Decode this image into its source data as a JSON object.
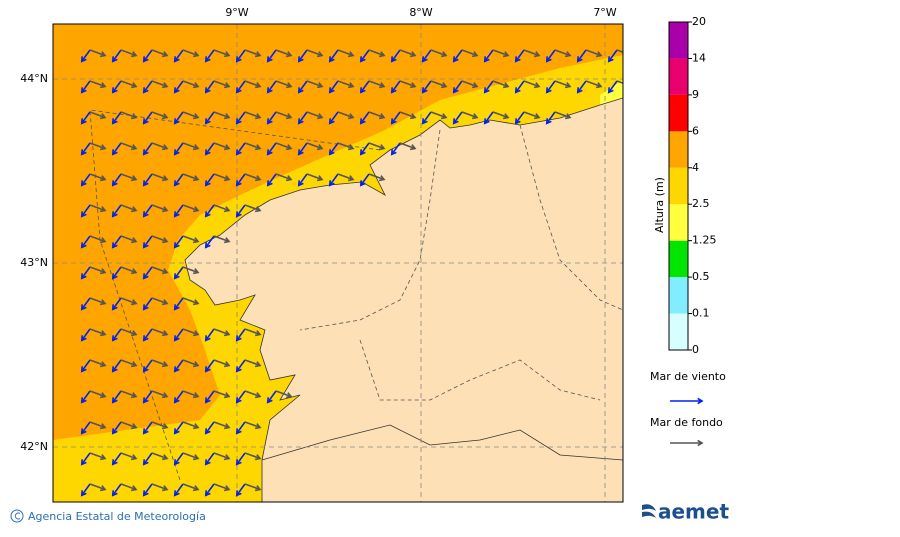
{
  "map": {
    "lon_labels": [
      "9°W",
      "8°W",
      "7°W"
    ],
    "lat_labels": [
      "44°N",
      "43°N",
      "42°N"
    ]
  },
  "colorbar": {
    "title": "Altura (m)",
    "levels": [
      0,
      0.1,
      0.5,
      1.25,
      2.5,
      4,
      6,
      9,
      14,
      20
    ],
    "colors": [
      "#d8ffff",
      "#80eeff",
      "#00e600",
      "#ffff40",
      "#ffd700",
      "#ffa500",
      "#ff0000",
      "#e8006e",
      "#aa00aa"
    ]
  },
  "legend": {
    "items": [
      {
        "label": "Mar de viento",
        "color": "#0022ee"
      },
      {
        "label": "Mar de fondo",
        "color": "#555555"
      }
    ]
  },
  "footer": {
    "credit": "Agencia Estatal de Meteorología",
    "logo": "aemet"
  }
}
